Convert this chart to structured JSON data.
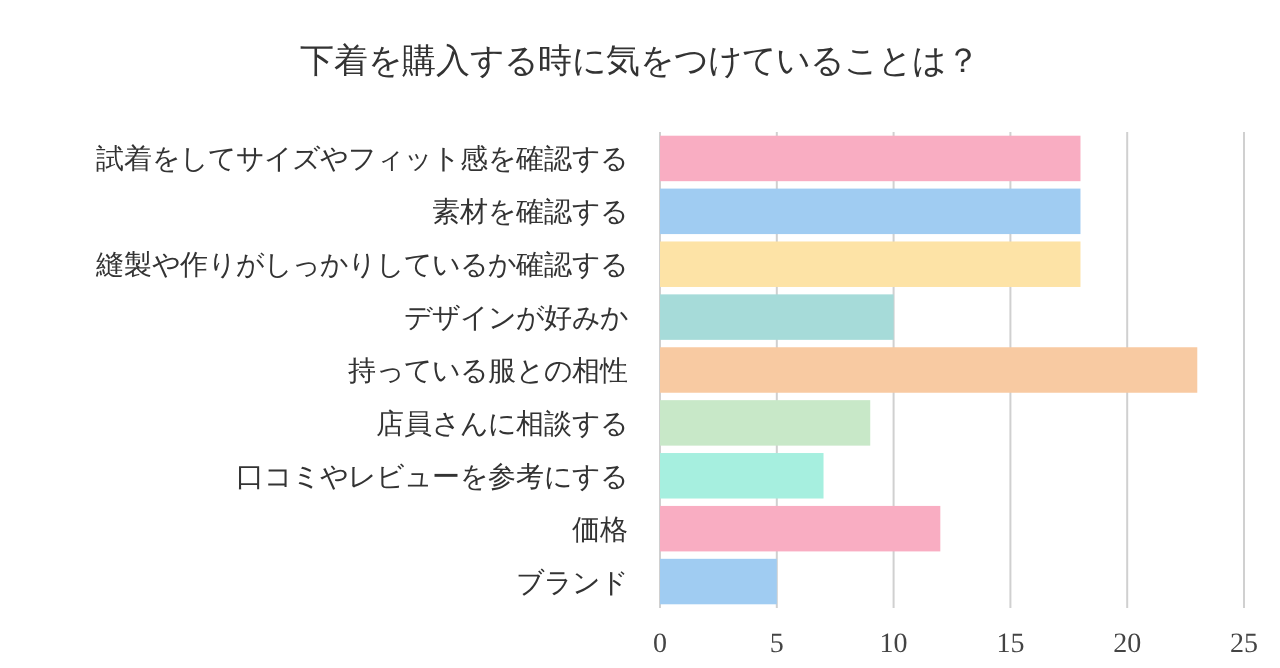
{
  "chart_data": {
    "type": "bar",
    "orientation": "horizontal",
    "title": "下着を購入する時に気をつけていることは？",
    "categories": [
      "試着をしてサイズやフィット感を確認する",
      "素材を確認する",
      "縫製や作りがしっかりしているか確認する",
      "デザインが好みか",
      "持っている服との相性",
      "店員さんに相談する",
      "口コミやレビューを参考にする",
      "価格",
      "ブランド"
    ],
    "values": [
      18,
      18,
      18,
      10,
      23,
      9,
      7,
      12,
      5
    ],
    "colors": [
      "#f9adc2",
      "#a0ccf2",
      "#fde3a6",
      "#a6dbd9",
      "#f8caa2",
      "#c8e8c8",
      "#a6efdf",
      "#f9adc2",
      "#a0ccf2"
    ],
    "xlim": [
      0,
      25
    ],
    "xticks": [
      0,
      5,
      10,
      15,
      20,
      25
    ],
    "grid": "x"
  }
}
